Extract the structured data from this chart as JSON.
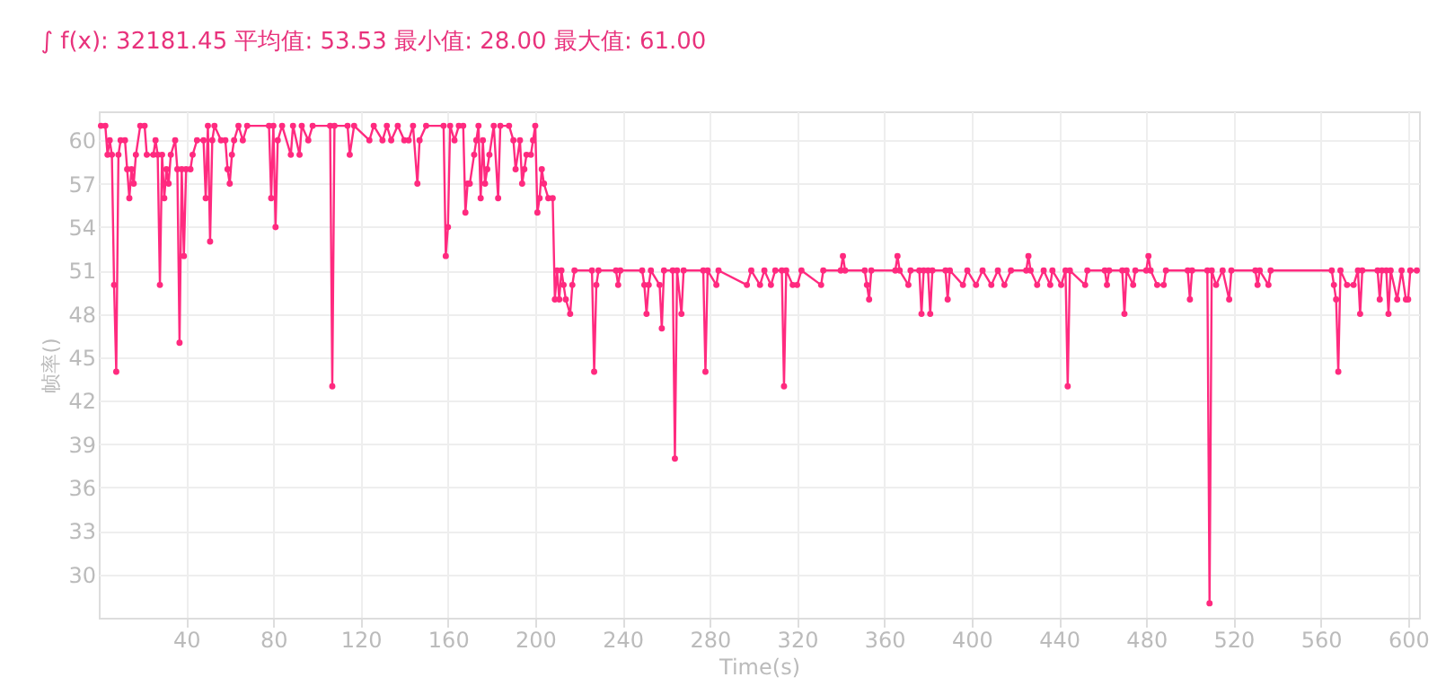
{
  "chart_data": {
    "type": "line",
    "title": "∫ f(x): 32181.45 平均值: 53.53 最小值: 28.00 最大值: 61.00",
    "xlabel": "Time(s)",
    "ylabel": "帧率()",
    "xlim": [
      0,
      605
    ],
    "xticks": [
      40,
      80,
      120,
      160,
      200,
      240,
      280,
      320,
      360,
      400,
      440,
      480,
      520,
      560,
      600
    ],
    "ylim": [
      27,
      62
    ],
    "yticks": [
      30,
      33,
      36,
      39,
      42,
      45,
      48,
      51,
      54,
      57,
      60
    ],
    "grid": true,
    "marker": "circle",
    "line_style": "solid",
    "series": [
      {
        "color": "#ff2a7f",
        "x": [
          1,
          3,
          4,
          5,
          6,
          7,
          8,
          9,
          10,
          12,
          13,
          14,
          15,
          16,
          17,
          19,
          21,
          22,
          25,
          26,
          27,
          28,
          29,
          30,
          31,
          32,
          33,
          35,
          36,
          37,
          38,
          39,
          40,
          42,
          43,
          45,
          48,
          49,
          50,
          51,
          52,
          53,
          56,
          58,
          59,
          60,
          61,
          62,
          64,
          66,
          68,
          78,
          79,
          80,
          81,
          82,
          84,
          88,
          89,
          92,
          93,
          96,
          98,
          106,
          107,
          108,
          114,
          115,
          117,
          124,
          126,
          130,
          132,
          134,
          137,
          140,
          142,
          144,
          146,
          147,
          150,
          158,
          159,
          160,
          161,
          163,
          165,
          167,
          168,
          169,
          170,
          172,
          173,
          174,
          175,
          176,
          177,
          178,
          179,
          181,
          183,
          184,
          188,
          190,
          191,
          193,
          194,
          195,
          196,
          198,
          199,
          200,
          201,
          202,
          203,
          204,
          206,
          208,
          209,
          210,
          211,
          212,
          213,
          214,
          216,
          217,
          218,
          226,
          227,
          228,
          229,
          237,
          238,
          239,
          249,
          250,
          251,
          252,
          253,
          257,
          258,
          259,
          263,
          264,
          265,
          267,
          268,
          277,
          278,
          279,
          283,
          284,
          297,
          299,
          303,
          305,
          308,
          310,
          313,
          314,
          315,
          318,
          320,
          322,
          331,
          332,
          340,
          341,
          342,
          351,
          352,
          353,
          354,
          365,
          366,
          367,
          371,
          372,
          376,
          377,
          378,
          380,
          381,
          382,
          388,
          389,
          390,
          396,
          398,
          402,
          405,
          409,
          412,
          415,
          418,
          425,
          426,
          427,
          430,
          433,
          436,
          437,
          441,
          443,
          444,
          445,
          452,
          453,
          461,
          462,
          463,
          469,
          470,
          471,
          474,
          475,
          480,
          481,
          482,
          485,
          488,
          489,
          499,
          500,
          501,
          508,
          509,
          510,
          512,
          515,
          518,
          519,
          530,
          531,
          532,
          536,
          537,
          565,
          566,
          567,
          568,
          569,
          572,
          575,
          577,
          578,
          579,
          586,
          587,
          588,
          590,
          591,
          592,
          595,
          597,
          599,
          600,
          601,
          604
        ],
        "values": [
          61,
          61,
          59,
          60,
          59,
          50,
          44,
          59,
          60,
          60,
          58,
          56,
          58,
          57,
          59,
          61,
          61,
          59,
          59,
          60,
          59,
          50,
          59,
          56,
          58,
          57,
          59,
          60,
          58,
          46,
          58,
          52,
          58,
          58,
          59,
          60,
          60,
          56,
          61,
          53,
          60,
          61,
          60,
          60,
          58,
          57,
          59,
          60,
          61,
          60,
          61,
          61,
          56,
          61,
          54,
          60,
          61,
          59,
          61,
          59,
          61,
          60,
          61,
          61,
          43,
          61,
          61,
          59,
          61,
          60,
          61,
          60,
          61,
          60,
          61,
          60,
          60,
          61,
          57,
          60,
          61,
          61,
          52,
          54,
          61,
          60,
          61,
          61,
          55,
          57,
          57,
          59,
          60,
          61,
          56,
          60,
          57,
          58,
          59,
          61,
          56,
          61,
          61,
          60,
          58,
          60,
          57,
          58,
          59,
          59,
          60,
          61,
          55,
          56,
          58,
          57,
          56,
          56,
          49,
          51,
          49,
          51,
          50,
          49,
          48,
          50,
          51,
          51,
          44,
          50,
          51,
          51,
          50,
          51,
          51,
          50,
          48,
          50,
          51,
          50,
          47,
          51,
          51,
          38,
          51,
          48,
          51,
          51,
          44,
          51,
          50,
          51,
          50,
          51,
          50,
          51,
          50,
          51,
          51,
          43,
          51,
          50,
          50,
          51,
          50,
          51,
          51,
          52,
          51,
          51,
          50,
          49,
          51,
          51,
          52,
          51,
          50,
          51,
          51,
          48,
          51,
          51,
          48,
          51,
          51,
          49,
          51,
          50,
          51,
          50,
          51,
          50,
          51,
          50,
          51,
          51,
          52,
          51,
          50,
          51,
          50,
          51,
          50,
          51,
          43,
          51,
          50,
          51,
          51,
          50,
          51,
          51,
          48,
          51,
          50,
          51,
          51,
          52,
          51,
          50,
          50,
          51,
          51,
          49,
          51,
          51,
          28,
          51,
          50,
          51,
          49,
          51,
          51,
          50,
          51,
          50,
          51,
          51,
          50,
          49,
          44,
          51,
          50,
          50,
          51,
          48,
          51,
          51,
          49,
          51,
          51,
          48,
          51,
          49,
          51,
          49,
          49,
          51,
          51
        ]
      }
    ]
  }
}
